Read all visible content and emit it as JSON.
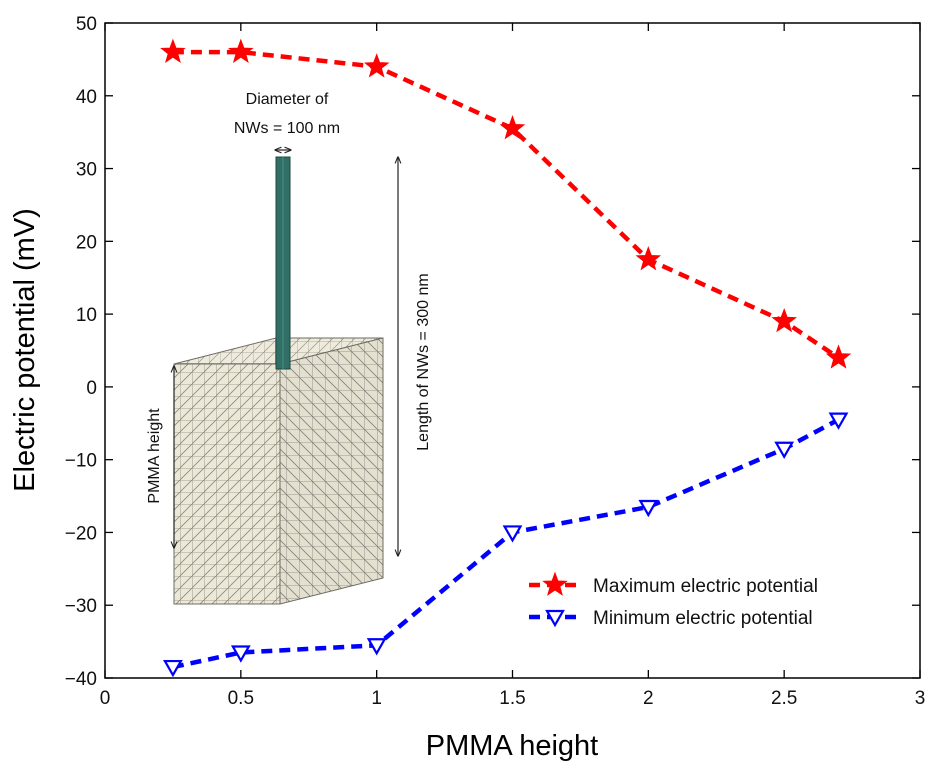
{
  "chart_data": {
    "type": "line",
    "xlabel": "PMMA height",
    "ylabel": "Electric potential (mV)",
    "xlim": [
      0,
      3
    ],
    "ylim": [
      -40,
      50
    ],
    "x_ticks": [
      0,
      0.5,
      1,
      1.5,
      2,
      2.5,
      3
    ],
    "x_tick_labels": [
      "0",
      "0.5",
      "1",
      "1.5",
      "2",
      "2.5",
      "3"
    ],
    "y_ticks": [
      -40,
      -30,
      -20,
      -10,
      0,
      10,
      20,
      30,
      40,
      50
    ],
    "y_tick_labels": [
      "−40",
      "−30",
      "−20",
      "−10",
      "0",
      "10",
      "20",
      "30",
      "40",
      "50"
    ],
    "grid": false,
    "legend_position": "lower-right",
    "x": [
      0.25,
      0.5,
      1,
      1.5,
      2,
      2.5,
      2.7
    ],
    "series": [
      {
        "name": "Maximum electric potential",
        "color": "#ff0000",
        "marker": "star",
        "line_style": "dashed",
        "values": [
          46,
          46,
          44,
          35.5,
          17.5,
          9,
          4
        ]
      },
      {
        "name": "Minimum electric potential",
        "color": "#0000ff",
        "marker": "triangle-down-open",
        "line_style": "dashed",
        "values": [
          -38.5,
          -36.5,
          -35.5,
          -20,
          -16.5,
          -8.5,
          -4.5
        ]
      }
    ],
    "inset": {
      "diameter_label_line1": "Diameter of",
      "diameter_label_line2": "NWs = 100 nm",
      "length_label": "Length of NWs = 300 nm",
      "pmma_label": "PMMA height",
      "nanowire_color": "#2f6f66",
      "block_color": "#ebe7d6"
    }
  }
}
